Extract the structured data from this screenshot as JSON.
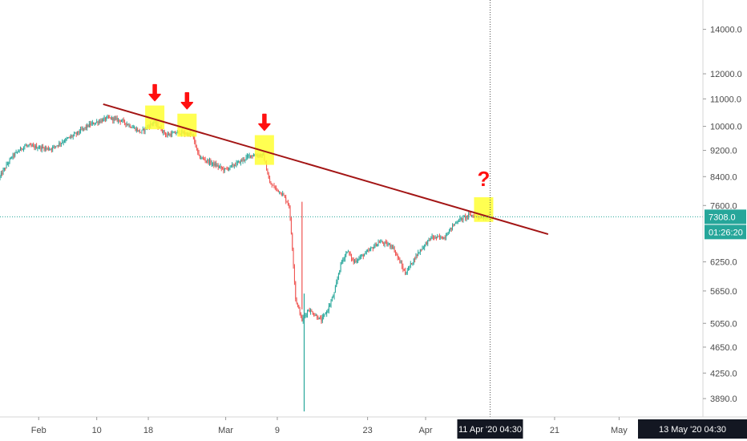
{
  "chart_data": {
    "type": "candlestick",
    "scale": "log",
    "grid": false,
    "ylim": [
      3650,
      15500
    ],
    "y_ticks": [
      3890.0,
      4250.0,
      4650.0,
      5050.0,
      5650.0,
      6250.0,
      7600.0,
      8400.0,
      9200.0,
      10000.0,
      11000.0,
      12000.0,
      14000.0
    ],
    "y_tick_labels": [
      "3890.0",
      "4250.0",
      "4650.0",
      "5050.0",
      "5650.0",
      "6250.0",
      "7600.0",
      "8400.0",
      "9200.0",
      "10000.0",
      "11000.0",
      "12000.0",
      "14000.0"
    ],
    "x_range": [
      "2020-01-26",
      "2020-05-14"
    ],
    "x_ticks": [
      {
        "date": "2020-02-01",
        "label": "Feb"
      },
      {
        "date": "2020-02-10",
        "label": "10"
      },
      {
        "date": "2020-02-18",
        "label": "18"
      },
      {
        "date": "2020-03-01",
        "label": "Mar"
      },
      {
        "date": "2020-03-09",
        "label": "9"
      },
      {
        "date": "2020-03-23",
        "label": "23"
      },
      {
        "date": "2020-04-01",
        "label": "Apr"
      },
      {
        "date": "2020-04-21",
        "label": "21"
      },
      {
        "date": "2020-05-01",
        "label": "May"
      }
    ],
    "price_path": [
      [
        "2020-01-26",
        8350
      ],
      [
        "2020-01-28",
        9000
      ],
      [
        "2020-01-30",
        9350
      ],
      [
        "2020-02-03",
        9250
      ],
      [
        "2020-02-05",
        9500
      ],
      [
        "2020-02-07",
        9750
      ],
      [
        "2020-02-09",
        10050
      ],
      [
        "2020-02-12",
        10300
      ],
      [
        "2020-02-14",
        10200
      ],
      [
        "2020-02-17",
        9800
      ],
      [
        "2020-02-19",
        10150
      ],
      [
        "2020-02-21",
        9700
      ],
      [
        "2020-02-23",
        9800
      ],
      [
        "2020-02-25",
        9700
      ],
      [
        "2020-02-26",
        9000
      ],
      [
        "2020-02-28",
        8800
      ],
      [
        "2020-03-01",
        8600
      ],
      [
        "2020-03-03",
        8800
      ],
      [
        "2020-03-05",
        9050
      ],
      [
        "2020-03-07",
        9050
      ],
      [
        "2020-03-08",
        8200
      ],
      [
        "2020-03-10",
        7900
      ],
      [
        "2020-03-11",
        7600
      ],
      [
        "2020-03-12",
        5500
      ],
      [
        "2020-03-13",
        5100
      ],
      [
        "2020-03-14",
        5300
      ],
      [
        "2020-03-16",
        5100
      ],
      [
        "2020-03-17",
        5300
      ],
      [
        "2020-03-18",
        5600
      ],
      [
        "2020-03-19",
        6200
      ],
      [
        "2020-03-20",
        6500
      ],
      [
        "2020-03-21",
        6250
      ],
      [
        "2020-03-23",
        6450
      ],
      [
        "2020-03-25",
        6700
      ],
      [
        "2020-03-27",
        6600
      ],
      [
        "2020-03-29",
        6000
      ],
      [
        "2020-03-31",
        6450
      ],
      [
        "2020-04-02",
        6800
      ],
      [
        "2020-04-04",
        6800
      ],
      [
        "2020-04-06",
        7200
      ],
      [
        "2020-04-08",
        7350
      ],
      [
        "2020-04-10",
        7300
      ],
      [
        "2020-04-11",
        7308
      ]
    ],
    "trendline": {
      "start": [
        "2020-02-11",
        10800
      ],
      "end": [
        "2020-04-20",
        6880
      ],
      "color": "#a31515"
    },
    "highlight_boxes": [
      {
        "date": "2020-02-19",
        "low": 9900,
        "high": 10750
      },
      {
        "date": "2020-02-24",
        "low": 9650,
        "high": 10450
      },
      {
        "date": "2020-03-07",
        "low": 8750,
        "high": 9700
      },
      {
        "date": "2020-04-10",
        "low": 7180,
        "high": 7820
      }
    ],
    "annotations": {
      "arrow_dates": [
        "2020-02-19",
        "2020-02-24",
        "2020-03-07"
      ],
      "question_mark": "?"
    },
    "current_price": 7308.0,
    "current_price_label": "7308.0",
    "countdown": "01:26:20",
    "crosshair": {
      "date": "2020-04-11",
      "date_label": "11 Apr '20",
      "time_label": "04:30"
    },
    "range_end_label": {
      "date_label": "13 May '20",
      "time_label": "04:30"
    },
    "colors": {
      "up": "#26a69a",
      "down": "#ef5350",
      "trendline": "#a31515",
      "highlight": "#ffff33",
      "arrow": "#ff1010",
      "badge": "#26a69a",
      "dark_badge": "#131722",
      "axis": "#4a4a4a"
    }
  }
}
